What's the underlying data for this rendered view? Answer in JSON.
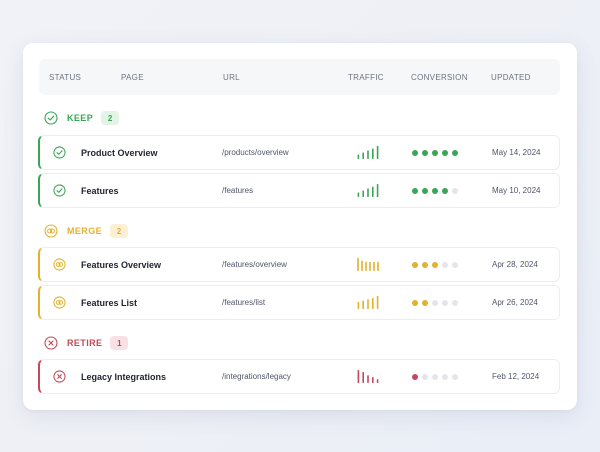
{
  "colors": {
    "keep": "#3aa655",
    "keep_bg": "#e3f4e7",
    "merge": "#e2b12d",
    "merge_bg": "#fbf0d3",
    "retire": "#c4495a",
    "retire_bg": "#f8e1e4",
    "dot_off": "#e3e5ea"
  },
  "table": {
    "headers": {
      "status": "STATUS",
      "page": "PAGE",
      "url": "URL",
      "traffic": "TRAFFIC",
      "conversion": "CONVERSION",
      "updated": "UPDATED"
    }
  },
  "groups": [
    {
      "key": "keep",
      "label": "KEEP",
      "count": "2",
      "icon": "check-circle-icon",
      "rows": [
        {
          "page": "Product Overview",
          "url": "/products/overview",
          "traffic": [
            0.35,
            0.5,
            0.65,
            0.8,
            1.0
          ],
          "conversion": 5,
          "updated": "May 14, 2024"
        },
        {
          "page": "Features",
          "url": "/features",
          "traffic": [
            0.35,
            0.5,
            0.65,
            0.8,
            1.0
          ],
          "conversion": 4,
          "updated": "May 10, 2024"
        }
      ]
    },
    {
      "key": "merge",
      "label": "MERGE",
      "count": "2",
      "icon": "merge-circle-icon",
      "rows": [
        {
          "page": "Features Overview",
          "url": "/features/overview",
          "traffic": [
            1.0,
            0.8,
            0.7,
            0.7,
            0.7,
            0.7
          ],
          "conversion": 3,
          "updated": "Apr 28, 2024"
        },
        {
          "page": "Features List",
          "url": "/features/list",
          "traffic": [
            0.55,
            0.65,
            0.75,
            0.85,
            1.0
          ],
          "conversion": 2,
          "updated": "Apr 26, 2024"
        }
      ]
    },
    {
      "key": "retire",
      "label": "RETIRE",
      "count": "1",
      "icon": "x-circle-icon",
      "rows": [
        {
          "page": "Legacy Integrations",
          "url": "/integrations/legacy",
          "traffic": [
            1.0,
            0.85,
            0.6,
            0.45,
            0.3
          ],
          "conversion": 1,
          "updated": "Feb 12, 2024"
        }
      ]
    }
  ]
}
